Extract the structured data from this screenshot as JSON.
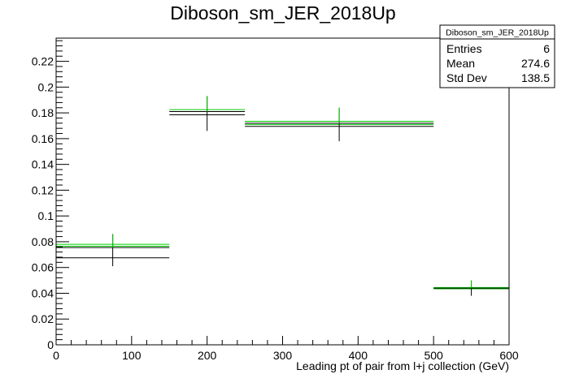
{
  "chart_data": {
    "type": "histogram",
    "title": "Diboson_sm_JER_2018Up",
    "xlabel": "Leading pt of pair from l+j collection (GeV)",
    "ylabel": "",
    "xlim": [
      0,
      600
    ],
    "ylim": [
      0,
      0.238
    ],
    "x_ticks": [
      0,
      100,
      200,
      300,
      400,
      500,
      600
    ],
    "y_ticks": [
      0,
      0.02,
      0.04,
      0.06,
      0.08,
      0.1,
      0.12,
      0.14,
      0.16,
      0.18,
      0.2,
      0.22
    ],
    "bins": [
      {
        "x_low": 0,
        "x_high": 150,
        "x_center": 75,
        "y": 0.0755,
        "err_low": 0.061,
        "err_high": 0.086,
        "green": 0.078,
        "green2": 0.0765,
        "black": 0.0675
      },
      {
        "x_low": 150,
        "x_high": 250,
        "x_center": 200,
        "y": 0.181,
        "err_low": 0.166,
        "err_high": 0.193,
        "green": 0.1825,
        "green2": 0.181,
        "black": 0.1785
      },
      {
        "x_low": 250,
        "x_high": 500,
        "x_center": 375,
        "y": 0.172,
        "err_low": 0.158,
        "err_high": 0.184,
        "green": 0.1735,
        "green2": 0.171,
        "black": 0.1695
      },
      {
        "x_low": 500,
        "x_high": 600,
        "x_center": 550,
        "y": 0.044,
        "err_low": 0.038,
        "err_high": 0.05,
        "green": 0.0445,
        "green2": 0.0435,
        "black": 0.0435
      }
    ],
    "colors": {
      "nominal": "#000000",
      "variation": "#00cc00",
      "frame": "#000000"
    },
    "grid": false
  },
  "stats": {
    "title": "Diboson_sm_JER_2018Up",
    "rows": [
      {
        "label": "Entries",
        "value": "6"
      },
      {
        "label": "Mean",
        "value": "274.6"
      },
      {
        "label": "Std Dev",
        "value": "138.5"
      }
    ]
  }
}
